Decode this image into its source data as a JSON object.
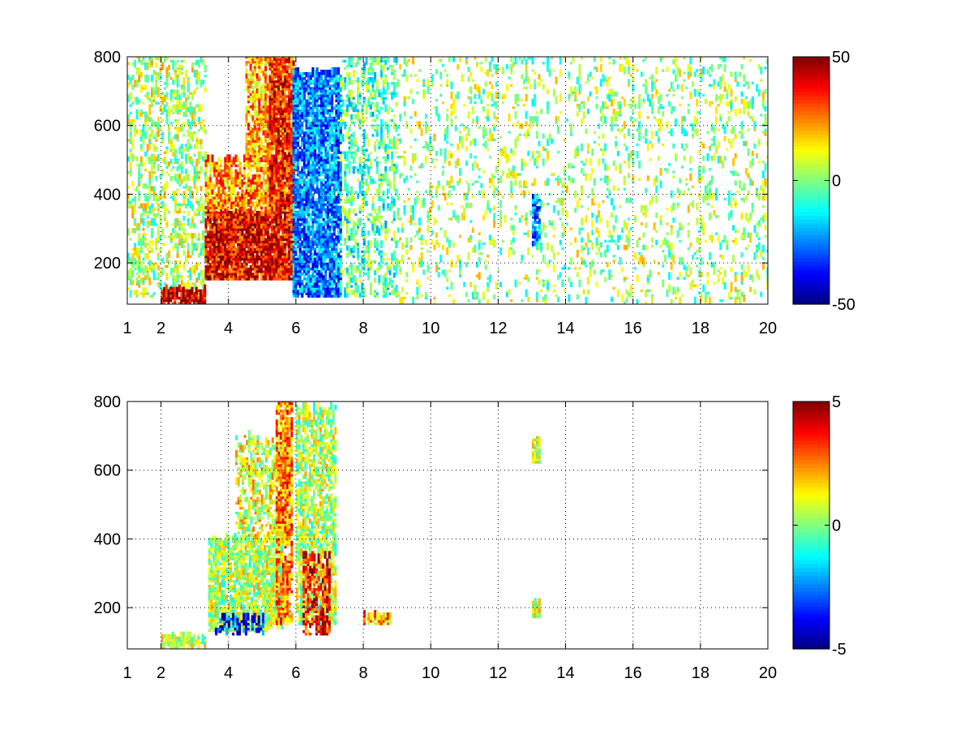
{
  "chart_data": [
    {
      "type": "heatmap",
      "title": "",
      "xlabel": "",
      "ylabel": "",
      "xlim": [
        1,
        20
      ],
      "ylim": [
        80,
        800
      ],
      "x_ticks": [
        1,
        2,
        4,
        6,
        8,
        10,
        12,
        14,
        16,
        18,
        20
      ],
      "x_tick_labels": [
        "1",
        "2",
        "4",
        "6",
        "8",
        "10",
        "12",
        "14",
        "16",
        "18",
        "20"
      ],
      "y_ticks": [
        200,
        400,
        600,
        800
      ],
      "y_tick_labels": [
        "200",
        "400",
        "600",
        "800"
      ],
      "grid": true,
      "colorbar": {
        "colormap": "jet",
        "min": -50,
        "max": 50,
        "ticks": [
          50,
          0,
          -50
        ],
        "tick_labels": [
          "50",
          "0",
          "-50"
        ]
      },
      "regions": [
        {
          "x": [
            1.0,
            3.3
          ],
          "y": [
            100,
            800
          ],
          "value": 5,
          "density": 0.25
        },
        {
          "x": [
            2.0,
            3.3
          ],
          "y": [
            80,
            120
          ],
          "value": 42,
          "density": 0.8
        },
        {
          "x": [
            3.3,
            5.9
          ],
          "y": [
            150,
            350
          ],
          "value": 38,
          "density": 0.85
        },
        {
          "x": [
            3.3,
            5.9
          ],
          "y": [
            350,
            500
          ],
          "value": 22,
          "density": 0.6
        },
        {
          "x": [
            4.5,
            5.9
          ],
          "y": [
            500,
            800
          ],
          "value": 20,
          "density": 0.5
        },
        {
          "x": [
            5.2,
            5.9
          ],
          "y": [
            350,
            800
          ],
          "value": 35,
          "density": 0.7
        },
        {
          "x": [
            5.9,
            7.3
          ],
          "y": [
            100,
            750
          ],
          "value": -25,
          "density": 0.7
        },
        {
          "x": [
            7.3,
            9.0
          ],
          "y": [
            100,
            800
          ],
          "value": -5,
          "density": 0.25
        },
        {
          "x": [
            9.0,
            20.0
          ],
          "y": [
            80,
            800
          ],
          "value": 3,
          "density": 0.1
        },
        {
          "x": [
            13.0,
            13.2
          ],
          "y": [
            250,
            400
          ],
          "value": -25,
          "density": 0.6
        }
      ]
    },
    {
      "type": "heatmap",
      "title": "",
      "xlabel": "",
      "ylabel": "",
      "xlim": [
        1,
        20
      ],
      "ylim": [
        80,
        800
      ],
      "x_ticks": [
        1,
        2,
        4,
        6,
        8,
        10,
        12,
        14,
        16,
        18,
        20
      ],
      "x_tick_labels": [
        "1",
        "2",
        "4",
        "6",
        "8",
        "10",
        "12",
        "14",
        "16",
        "18",
        "20"
      ],
      "y_ticks": [
        200,
        400,
        600,
        800
      ],
      "y_tick_labels": [
        "200",
        "400",
        "600",
        "800"
      ],
      "grid": true,
      "colorbar": {
        "colormap": "jet",
        "min": -5,
        "max": 5,
        "ticks": [
          5,
          0,
          -5
        ],
        "tick_labels": [
          "5",
          "0",
          "-5"
        ]
      },
      "regions": [
        {
          "x": [
            2.0,
            3.3
          ],
          "y": [
            80,
            110
          ],
          "value": 0.5,
          "density": 0.6
        },
        {
          "x": [
            3.4,
            5.6
          ],
          "y": [
            130,
            400
          ],
          "value": 0.5,
          "density": 0.6
        },
        {
          "x": [
            3.6,
            5.0
          ],
          "y": [
            120,
            170
          ],
          "value": -3.5,
          "density": 0.4
        },
        {
          "x": [
            4.2,
            5.8
          ],
          "y": [
            400,
            700
          ],
          "value": 1.0,
          "density": 0.4
        },
        {
          "x": [
            5.4,
            5.9
          ],
          "y": [
            150,
            800
          ],
          "value": 2.5,
          "density": 0.6
        },
        {
          "x": [
            6.0,
            7.2
          ],
          "y": [
            150,
            780
          ],
          "value": 0.5,
          "density": 0.5
        },
        {
          "x": [
            6.2,
            7.0
          ],
          "y": [
            120,
            350
          ],
          "value": 3.5,
          "density": 0.5
        },
        {
          "x": [
            8.0,
            8.8
          ],
          "y": [
            150,
            175
          ],
          "value": 2.0,
          "density": 0.8
        },
        {
          "x": [
            13.0,
            13.2
          ],
          "y": [
            620,
            690
          ],
          "value": 0.5,
          "density": 0.8
        },
        {
          "x": [
            13.0,
            13.2
          ],
          "y": [
            170,
            220
          ],
          "value": 0.5,
          "density": 0.8
        }
      ]
    }
  ]
}
